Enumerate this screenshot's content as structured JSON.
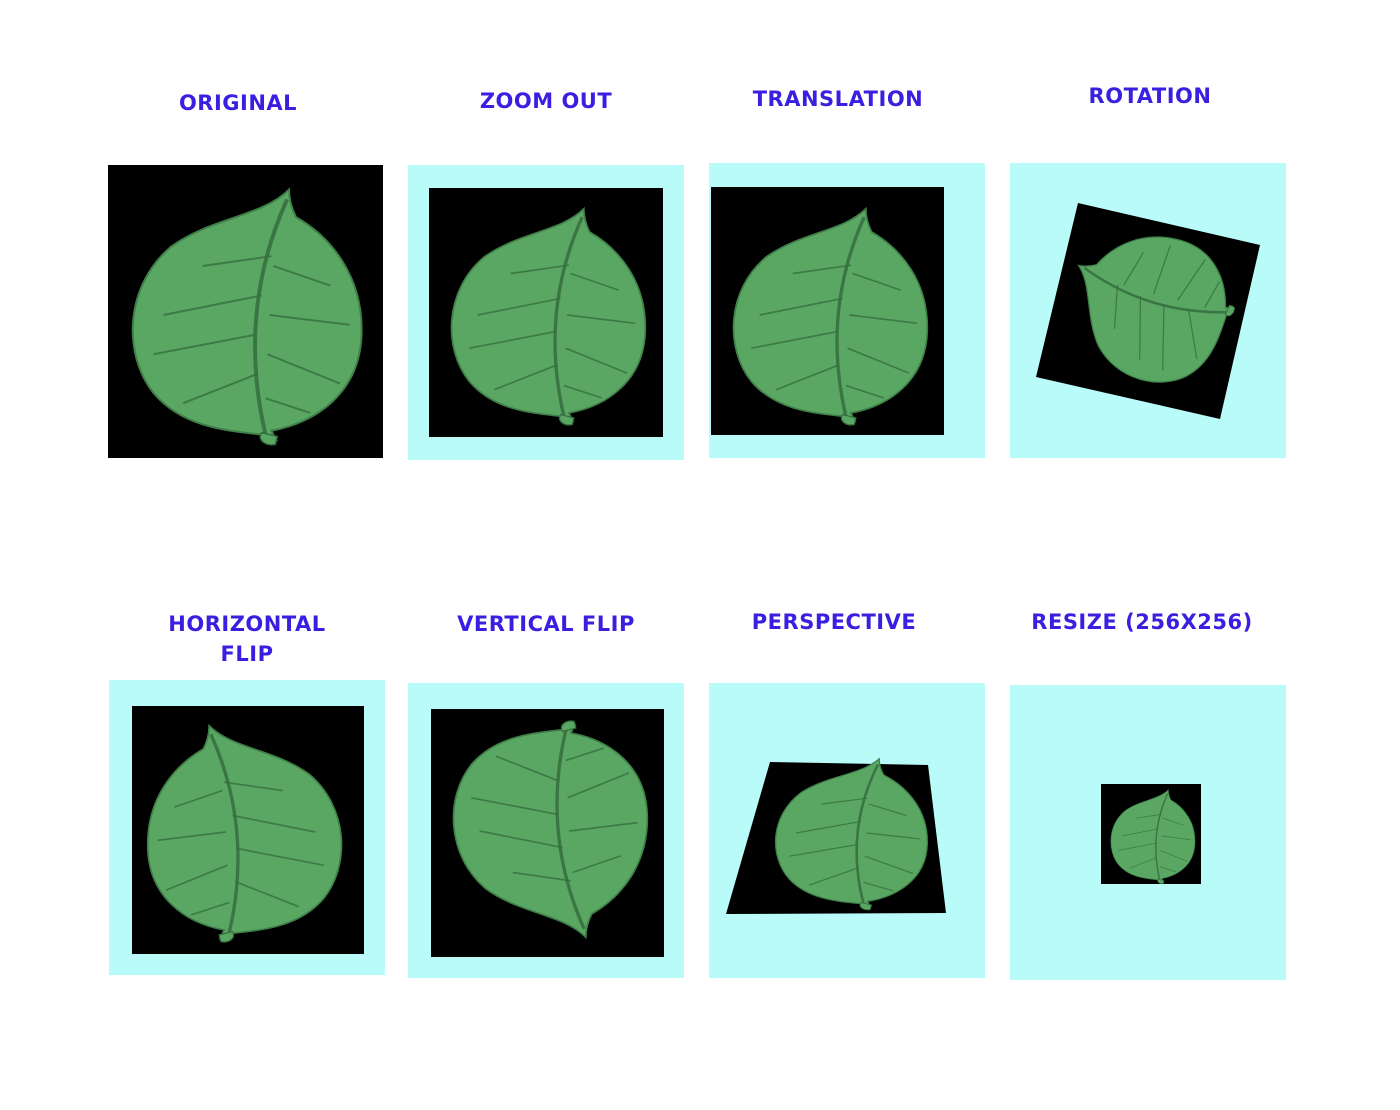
{
  "colors": {
    "label": "#3a1fe0",
    "panel_bg": "#b8fbf8",
    "image_bg": "#000000",
    "leaf_fill": "#5aa663",
    "leaf_vein": "#356f3f"
  },
  "panels": [
    {
      "label": "ORIGINAL",
      "icon": "leaf-icon"
    },
    {
      "label": "ZOOM OUT",
      "icon": "leaf-icon"
    },
    {
      "label": "TRANSLATION",
      "icon": "leaf-icon"
    },
    {
      "label": "ROTATION",
      "icon": "leaf-icon"
    },
    {
      "label": "HORIZONTAL FLIP",
      "icon": "leaf-icon"
    },
    {
      "label": "VERTICAL FLIP",
      "icon": "leaf-icon"
    },
    {
      "label": "PERSPECTIVE",
      "icon": "leaf-icon"
    },
    {
      "label": "RESIZE (256X256)",
      "icon": "leaf-icon"
    }
  ]
}
